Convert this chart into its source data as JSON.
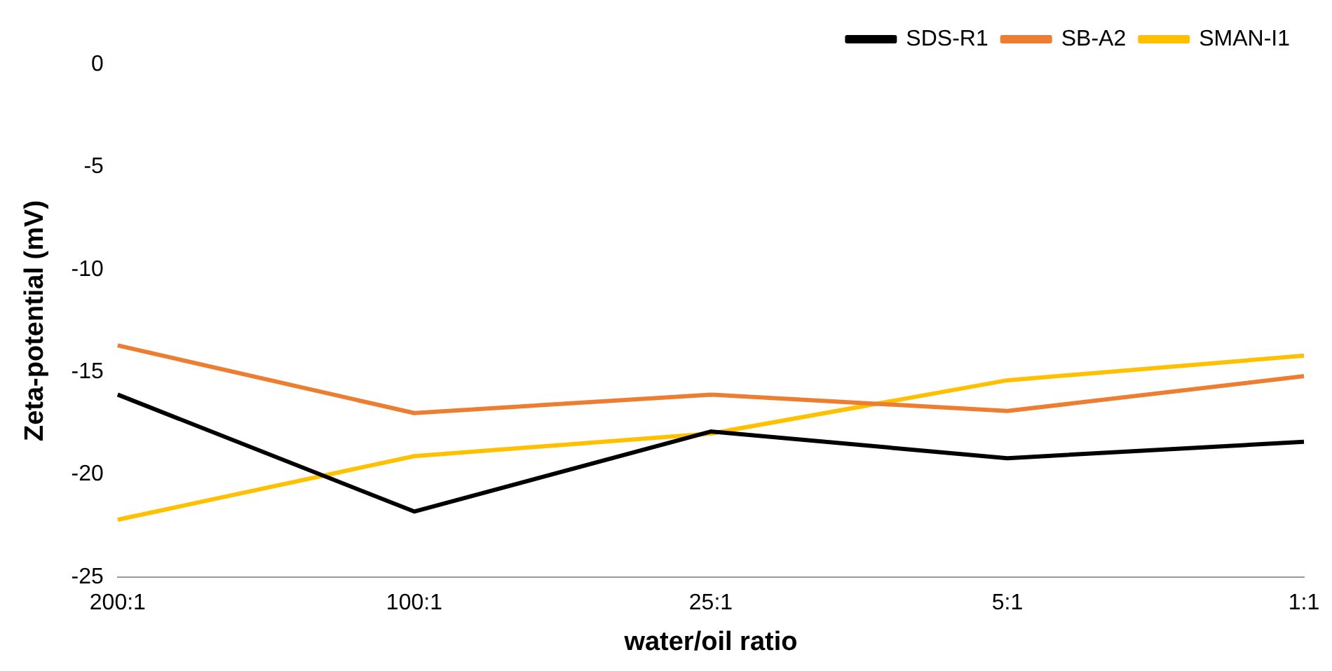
{
  "chart_data": {
    "type": "line",
    "xlabel": "water/oil ratio",
    "ylabel": "Zeta-potential (mV)",
    "categories": [
      "200:1",
      "100:1",
      "25:1",
      "5:1",
      "1:1"
    ],
    "series": [
      {
        "name": "SDS-R1",
        "color": "#000000",
        "values": [
          -16.1,
          -21.8,
          -17.9,
          -19.2,
          -18.4
        ]
      },
      {
        "name": "SB-A2",
        "color": "#ed7d31",
        "values": [
          -13.7,
          -17.0,
          -16.1,
          -16.9,
          -15.2
        ]
      },
      {
        "name": "SMAN-I1",
        "color": "#ffc000",
        "values": [
          -22.2,
          -19.1,
          -18.0,
          -15.4,
          -14.2
        ]
      }
    ],
    "ylim": [
      -25,
      0
    ],
    "yticks": [
      -25,
      -20,
      -15,
      -10,
      -5,
      0
    ],
    "grid": false,
    "legend": "top right",
    "marker": "none",
    "line_style": "solid"
  }
}
